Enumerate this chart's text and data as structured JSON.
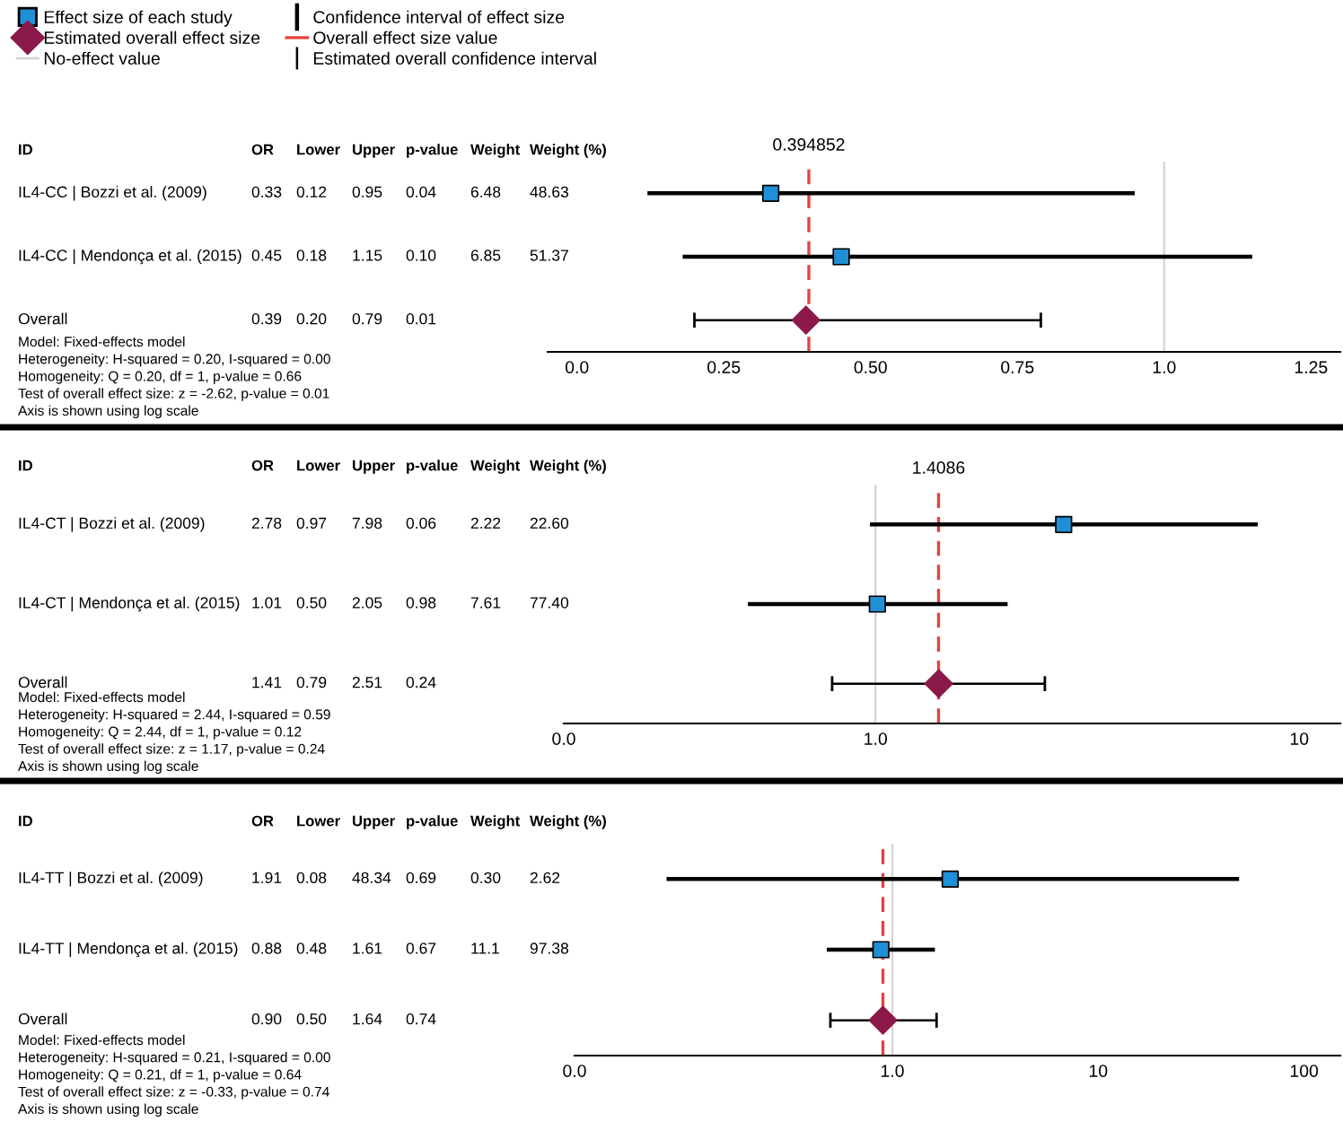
{
  "chart_data": [
    {
      "type": "scatter",
      "orientation": "horizontal",
      "legend": "top left",
      "tick_labels": "x",
      "categories": [
        "IL4-CC | Bozzi et al. (2009)",
        "IL4-CC | Mendonça et al. (2015)",
        "Overall"
      ],
      "series": [
        {
          "name": "Effect size of each study",
          "color": "#1f8fd6",
          "marker": "square",
          "values": [
            0.33,
            0.45,
            null
          ],
          "errors": [
            [
              0.12,
              0.95
            ],
            [
              0.18,
              1.15
            ],
            null
          ]
        },
        {
          "name": "Estimated overall effect size",
          "color": "#8b1a4a",
          "marker": "diamond",
          "values": [
            null,
            null,
            0.39
          ],
          "errors": [
            null,
            null,
            [
              0.2,
              0.79
            ]
          ]
        }
      ],
      "xlim": [
        -0.05,
        1.3
      ],
      "xticks": [
        {
          "value": 0,
          "label": "0.0"
        },
        0.25,
        {
          "value": 0.5,
          "label": "0.50"
        },
        0.75,
        {
          "value": 1,
          "label": "1.0"
        },
        1.25
      ],
      "ref_lines": [
        {
          "axis": "x",
          "value": 0.394852,
          "label": "0.394852",
          "color": "#e8403f",
          "line_style": "dashed"
        },
        {
          "axis": "x",
          "value": 1,
          "color": "#d4d4d4",
          "line_style": "solid"
        }
      ],
      "annotations": [
        "ID",
        "OR",
        "Lower",
        "Upper",
        "p-value",
        "Weight",
        "Weight (%)",
        "0.33",
        "0.12",
        "0.95",
        "0.04",
        "6.48",
        "48.63",
        "0.45",
        "0.18",
        "1.15",
        "0.10",
        "6.85",
        "51.37",
        "0.39",
        "0.20",
        "0.79",
        "0.01",
        "Model: Fixed-effects model",
        "Heterogeneity: H-squared = 0.20, I-squared = 0.00",
        "Homogeneity: Q = 0.20, df = 1, p-value = 0.66",
        "Test of overall effect size: z = -2.62, p-value = 0.01",
        "Axis is shown using log scale",
        "Confidence interval of effect size",
        "Overall effect size value",
        "No-effect value",
        "Estimated overall confidence interval"
      ]
    },
    {
      "type": "scatter",
      "orientation": "horizontal",
      "tick_labels": "x",
      "log": "x",
      "categories": [
        "IL4-CT | Bozzi et al. (2009)",
        "IL4-CT | Mendonça et al. (2015)",
        "Overall"
      ],
      "series": [
        {
          "color": "#1f8fd6",
          "marker": "square",
          "values": [
            2.78,
            1.01,
            null
          ],
          "errors": [
            [
              0.97,
              7.98
            ],
            [
              0.5,
              2.05
            ],
            null
          ]
        },
        {
          "color": "#8b1a4a",
          "marker": "diamond",
          "values": [
            null,
            null,
            1.41
          ],
          "errors": [
            null,
            null,
            [
              0.79,
              2.51
            ]
          ]
        }
      ],
      "xlim": [
        0,
        12.5
      ],
      "xticks": [
        {
          "value": 0,
          "label": "0.0"
        },
        {
          "value": 1,
          "label": "1.0"
        },
        10
      ],
      "ref_lines": [
        {
          "axis": "x",
          "value": 1.4086,
          "label": "1.4086",
          "color": "#e8403f",
          "line_style": "dashed"
        },
        {
          "axis": "x",
          "value": 1,
          "color": "#d4d4d4",
          "line_style": "solid"
        }
      ],
      "annotations": [
        "ID",
        "OR",
        "Lower",
        "Upper",
        "p-value",
        "Weight",
        "Weight (%)",
        "2.78",
        "0.97",
        "7.98",
        "0.06",
        "2.22",
        "22.60",
        "1.01",
        "0.50",
        "2.05",
        "0.98",
        "7.61",
        "77.40",
        "1.41",
        "0.79",
        "2.51",
        "0.24",
        "Model: Fixed-effects model",
        "Heterogeneity: H-squared = 2.44, I-squared = 0.59",
        "Homogeneity: Q = 2.44, df = 1, p-value = 0.12",
        "Test of overall effect size: z = 1.17, p-value = 0.24",
        "Axis is shown using log scale"
      ]
    },
    {
      "type": "scatter",
      "orientation": "horizontal",
      "tick_labels": "x",
      "log": "x",
      "categories": [
        "IL4-TT | Bozzi et al. (2009)",
        "IL4-TT | Mendonça et al. (2015)",
        "Overall"
      ],
      "series": [
        {
          "color": "#1f8fd6",
          "marker": "square",
          "values": [
            1.91,
            0.88,
            null
          ],
          "errors": [
            [
              0.08,
              48.34
            ],
            [
              0.48,
              1.61
            ],
            null
          ]
        },
        {
          "color": "#8b1a4a",
          "marker": "diamond",
          "values": [
            null,
            null,
            0.9
          ],
          "errors": [
            null,
            null,
            [
              0.5,
              1.64
            ]
          ]
        }
      ],
      "xlim": [
        0,
        150
      ],
      "xticks": [
        {
          "value": 0,
          "label": "0.0"
        },
        {
          "value": 1,
          "label": "1.0"
        },
        10,
        100
      ],
      "ref_lines": [
        {
          "axis": "x",
          "value": 0.9,
          "color": "#e8403f",
          "line_style": "dashed"
        },
        {
          "axis": "x",
          "value": 1,
          "color": "#d4d4d4",
          "line_style": "solid"
        }
      ],
      "annotations": [
        "ID",
        "OR",
        "Lower",
        "Upper",
        "p-value",
        "Weight",
        "Weight (%)",
        "1.91",
        "0.08",
        "48.34",
        "0.69",
        "0.30",
        "2.62",
        "0.88",
        "0.48",
        "1.61",
        "0.67",
        "11.1",
        "97.38",
        "0.90",
        "0.50",
        "1.64",
        "0.74",
        "Model: Fixed-effects model",
        "Heterogeneity: H-squared = 0.21, I-squared = 0.00",
        "Homogeneity: Q = 0.21, df = 1, p-value = 0.64",
        "Test of overall effect size: z = -0.33, p-value = 0.74",
        "Axis is shown using log scale"
      ]
    }
  ]
}
